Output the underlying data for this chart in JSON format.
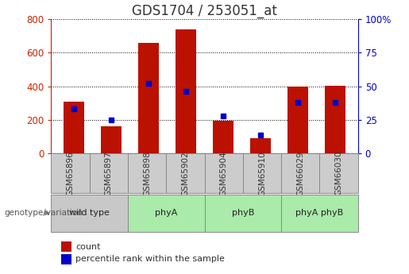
{
  "title": "GDS1704 / 253051_at",
  "samples": [
    "GSM65896",
    "GSM65897",
    "GSM65898",
    "GSM65902",
    "GSM65904",
    "GSM65910",
    "GSM66029",
    "GSM66030"
  ],
  "counts": [
    310,
    160,
    660,
    740,
    195,
    90,
    400,
    405
  ],
  "percentile_ranks": [
    33,
    25,
    52,
    46,
    28,
    14,
    38,
    38
  ],
  "group_spans": [
    {
      "label": "wild type",
      "start": 0,
      "end": 2,
      "color": "#c8c8c8"
    },
    {
      "label": "phyA",
      "start": 2,
      "end": 4,
      "color": "#aaeaaa"
    },
    {
      "label": "phyB",
      "start": 4,
      "end": 6,
      "color": "#aaeaaa"
    },
    {
      "label": "phyA phyB",
      "start": 6,
      "end": 8,
      "color": "#aaeaaa"
    }
  ],
  "bar_color": "#bb1100",
  "percentile_color": "#0000cc",
  "left_ylim": [
    0,
    800
  ],
  "right_ylim": [
    0,
    100
  ],
  "left_yticks": [
    0,
    200,
    400,
    600,
    800
  ],
  "right_yticks": [
    0,
    25,
    50,
    75,
    100
  ],
  "right_yticklabels": [
    "0",
    "25",
    "50",
    "75",
    "100%"
  ],
  "title_fontsize": 12,
  "tick_label_color_left": "#cc2200",
  "tick_label_color_right": "#0000cc",
  "group_label": "genotype/variation",
  "sample_box_color": "#cccccc",
  "sample_box_edge": "#888888",
  "bg_color": "#ffffff",
  "grid_color": "#000000",
  "bar_width": 0.55,
  "legend_count": "count",
  "legend_percentile": "percentile rank within the sample"
}
